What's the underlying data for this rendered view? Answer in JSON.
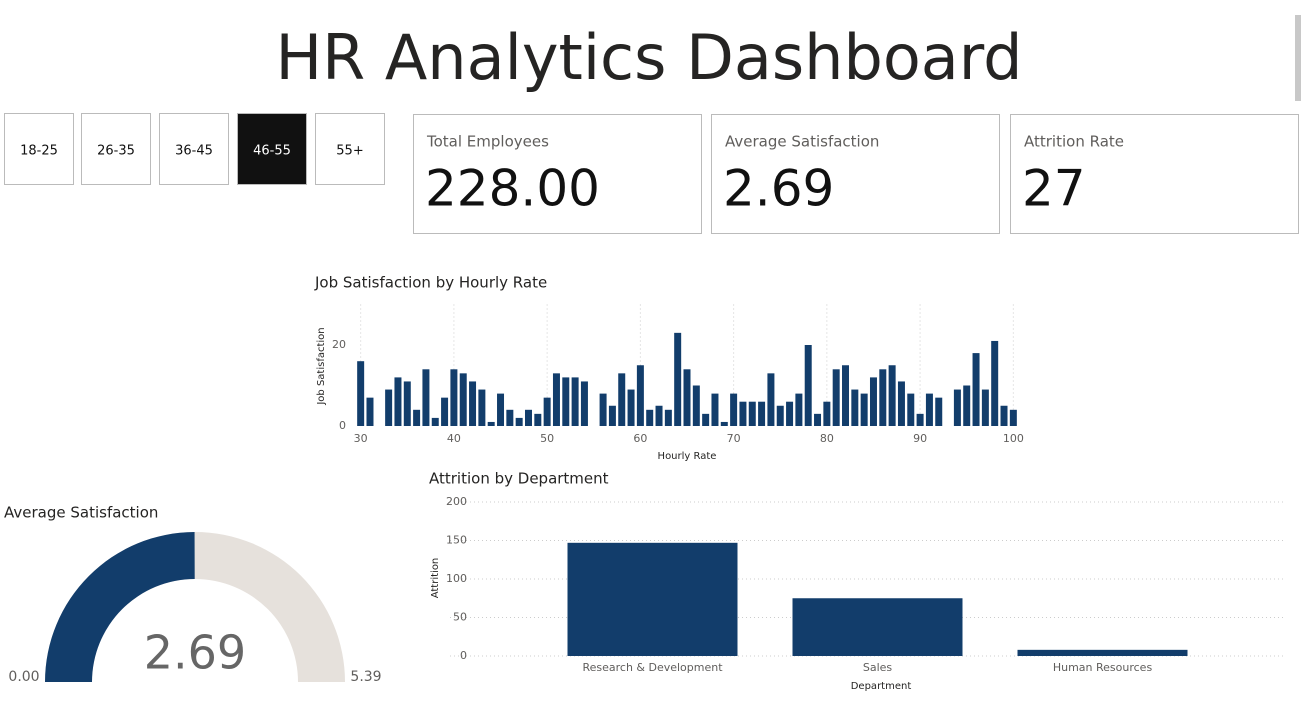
{
  "header": {
    "title": "HR Analytics Dashboard"
  },
  "slicer": {
    "options": [
      "18-25",
      "26-35",
      "36-45",
      "46-55",
      "55+"
    ],
    "selected": 3
  },
  "cards": [
    {
      "label": "Total Employees",
      "value": "228.00"
    },
    {
      "label": "Average Satisfaction",
      "value": "2.69"
    },
    {
      "label": "Attrition Rate",
      "value": "27"
    }
  ],
  "chart_data": [
    {
      "type": "bar",
      "title": "Job Satisfaction by Hourly Rate",
      "x_label": "Hourly Rate",
      "y_label": "Job Satisfaction",
      "color": "#123d6b",
      "x": [
        30,
        31,
        33,
        34,
        35,
        36,
        37,
        38,
        39,
        40,
        41,
        42,
        43,
        44,
        45,
        46,
        47,
        48,
        49,
        50,
        51,
        52,
        53,
        54,
        56,
        57,
        58,
        59,
        60,
        61,
        62,
        63,
        64,
        65,
        66,
        67,
        68,
        69,
        70,
        71,
        72,
        73,
        74,
        75,
        76,
        77,
        78,
        79,
        80,
        81,
        82,
        83,
        84,
        85,
        86,
        87,
        88,
        89,
        90,
        91,
        92,
        94,
        95,
        96,
        97,
        98,
        99,
        100
      ],
      "values": [
        16,
        7,
        9,
        12,
        11,
        4,
        14,
        2,
        7,
        14,
        13,
        11,
        9,
        1,
        8,
        4,
        2,
        4,
        3,
        7,
        13,
        12,
        12,
        11,
        8,
        5,
        13,
        9,
        15,
        4,
        5,
        4,
        23,
        14,
        10,
        3,
        8,
        1,
        8,
        6,
        6,
        6,
        13,
        5,
        6,
        8,
        20,
        3,
        6,
        14,
        15,
        9,
        8,
        12,
        14,
        15,
        11,
        8,
        3,
        8,
        7,
        9,
        10,
        18,
        9,
        21,
        5,
        4
      ],
      "xlim": [
        29.5,
        100.5
      ],
      "xticks": [
        30,
        40,
        50,
        60,
        70,
        80,
        90,
        100
      ],
      "ylim": [
        0,
        30
      ],
      "yticks": [
        0,
        20
      ],
      "grid": true
    },
    {
      "type": "bar",
      "title": "Attrition by Department",
      "x_label": "Department",
      "y_label": "Attrition",
      "color": "#123d6b",
      "categories": [
        "Research & Development",
        "Sales",
        "Human Resources"
      ],
      "values": [
        147,
        75,
        8
      ],
      "ylim": [
        0,
        200
      ],
      "yticks": [
        0,
        50,
        100,
        150,
        200
      ],
      "grid": true
    },
    {
      "type": "gauge",
      "title": "Average Satisfaction",
      "min": {
        "value": 0,
        "label": "0.00"
      },
      "max": 5.39,
      "value": 2.69,
      "color": "#123d6b",
      "track_color": "#e6e1dc"
    }
  ]
}
